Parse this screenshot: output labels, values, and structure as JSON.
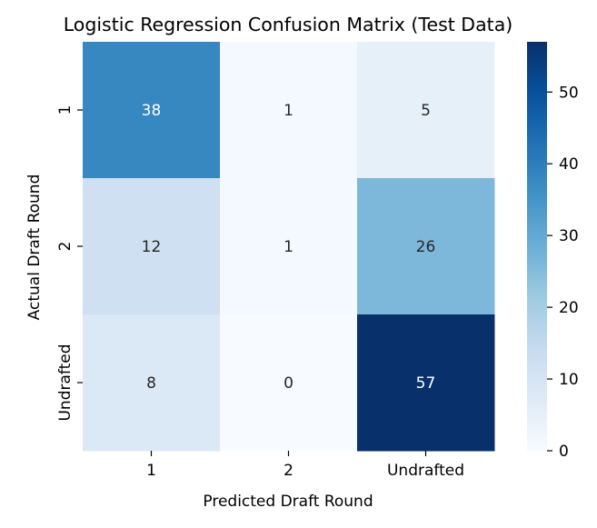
{
  "chart_data": {
    "type": "heatmap",
    "title": "Logistic Regression Confusion Matrix (Test Data)",
    "xlabel": "Predicted Draft Round",
    "ylabel": "Actual Draft Round",
    "x_categories": [
      "1",
      "2",
      "Undrafted"
    ],
    "y_categories": [
      "1",
      "2",
      "Undrafted"
    ],
    "values": [
      [
        38,
        1,
        5
      ],
      [
        12,
        1,
        26
      ],
      [
        8,
        0,
        57
      ]
    ],
    "colormap": "Blues",
    "colormap_low": "#f7fbff",
    "colormap_high": "#08306b",
    "vmin": 0,
    "vmax": 57,
    "colorbar_ticks": [
      0,
      10,
      20,
      30,
      40,
      50
    ],
    "annotation_color_dark": "#262626",
    "annotation_color_light": "#ffffff"
  }
}
